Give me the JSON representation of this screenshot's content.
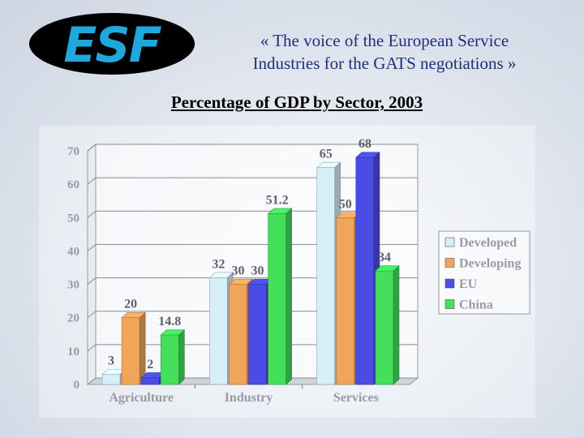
{
  "header": {
    "logo_text": "ESF",
    "tagline_line1": "« The voice of the European Service",
    "tagline_line2": "Industries for the GATS negotiations »"
  },
  "chart_data": {
    "type": "bar",
    "title": "Percentage of GDP by Sector, 2003",
    "categories": [
      "Agriculture",
      "Industry",
      "Services"
    ],
    "series": [
      {
        "name": "Developed",
        "values": [
          3,
          32,
          65
        ],
        "color": "#d6eef6"
      },
      {
        "name": "Developing",
        "values": [
          20,
          30,
          50
        ],
        "color": "#f0a55a"
      },
      {
        "name": "EU",
        "values": [
          2,
          30,
          68
        ],
        "color": "#4b4be6"
      },
      {
        "name": "China",
        "values": [
          14.8,
          51.2,
          34
        ],
        "color": "#44e05c"
      }
    ],
    "value_labels": [
      [
        "3",
        "32",
        "65"
      ],
      [
        "20",
        "30",
        "50"
      ],
      [
        "2",
        "30",
        "68"
      ],
      [
        "14.8",
        "51.2",
        "34"
      ]
    ],
    "ylim": [
      0,
      70
    ],
    "yticks": [
      0,
      10,
      20,
      30,
      40,
      50,
      60,
      70
    ],
    "grid": true,
    "legend_position": "right",
    "xlabel": "",
    "ylabel": ""
  }
}
